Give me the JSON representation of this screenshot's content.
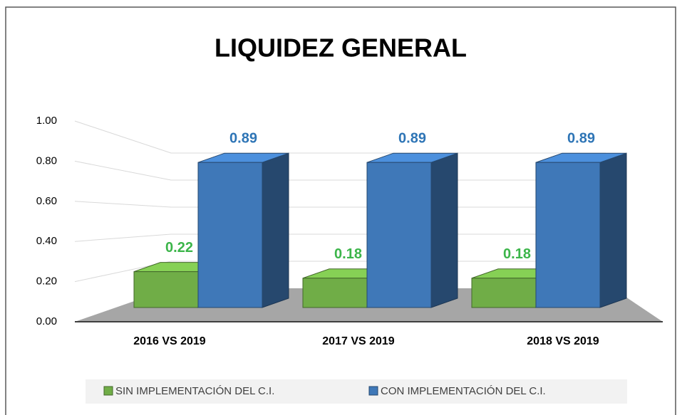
{
  "chart_data": {
    "type": "bar3d",
    "title": "LIQUIDEZ GENERAL",
    "categories": [
      "2016 VS 2019",
      "2017 VS 2019",
      "2018 VS 2019"
    ],
    "series": [
      {
        "name": "SIN IMPLEMENTACIÓN DEL C.I.",
        "color": "#70ad47",
        "values": [
          0.22,
          0.18,
          0.18
        ]
      },
      {
        "name": "CON IMPLEMENTACIÓN DEL C.I.",
        "color": "#3f78b8",
        "values": [
          0.89,
          0.89,
          0.89
        ]
      }
    ],
    "ylim": [
      0,
      1
    ],
    "yticks": [
      {
        "value": 0,
        "label": "0.00"
      },
      {
        "value": 0.2,
        "label": "0.20"
      },
      {
        "value": 0.4,
        "label": "0.40"
      },
      {
        "value": 0.6,
        "label": "0.60"
      },
      {
        "value": 0.8,
        "label": "0.80"
      },
      {
        "value": 1,
        "label": "1.00"
      }
    ],
    "grid": true,
    "legend": "bottom"
  }
}
